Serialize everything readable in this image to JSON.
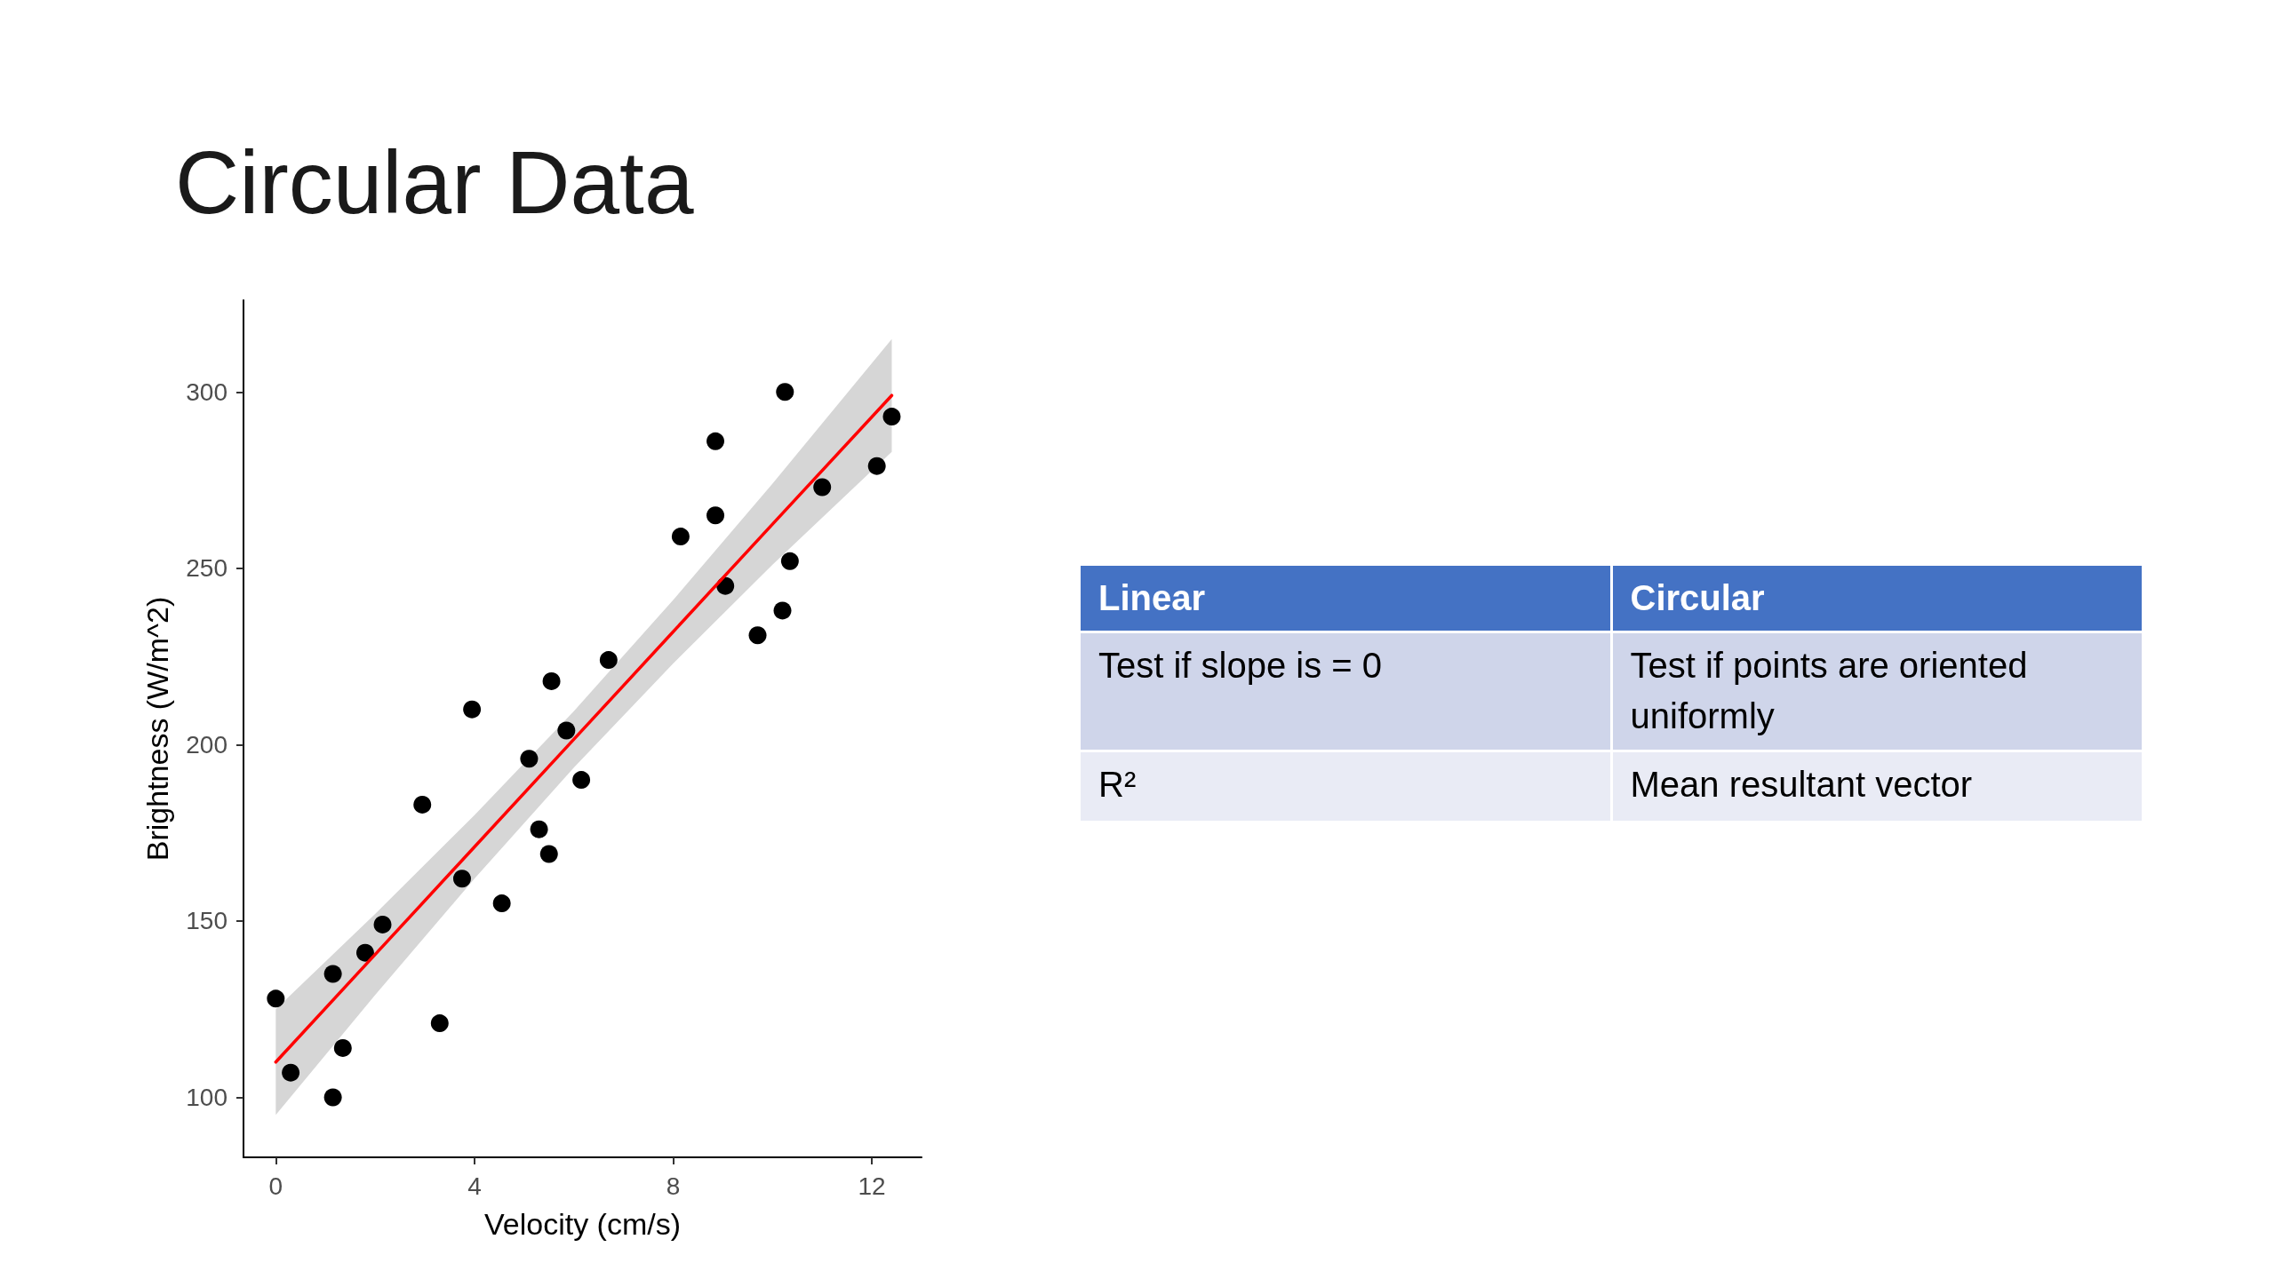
{
  "chart_data": [
    {
      "type": "scatter",
      "title": "Circular Data",
      "xlabel": "Velocity (cm/s)",
      "ylabel": "Brightness (W/m^2)",
      "xlim": [
        -0.65,
        13
      ],
      "ylim": [
        83,
        326
      ],
      "xticks": [
        0,
        4,
        8,
        12
      ],
      "yticks": [
        100,
        150,
        200,
        250,
        300
      ],
      "marker": "circle",
      "series": [
        {
          "type": "scatter",
          "color": "#000000",
          "x": [
            10.25,
            12.4,
            8.85,
            12.1,
            11,
            8.85,
            8.15,
            10.35,
            9.05,
            10.2,
            9.7,
            6.7,
            5.55,
            3.95,
            5.85,
            5.1,
            6.15,
            2.95,
            5.3,
            5.5,
            3.75,
            4.55,
            2.15,
            1.8,
            1.15,
            0,
            3.3,
            1.35,
            0.3,
            1.15
          ],
          "values": [
            300,
            293,
            286,
            279,
            273,
            265,
            259,
            252,
            245,
            238,
            231,
            224,
            218,
            210,
            204,
            196,
            190,
            183,
            176,
            169,
            162,
            155,
            149,
            141,
            135,
            128,
            121,
            114,
            107,
            100
          ]
        },
        {
          "type": "line",
          "color": "#ff0000",
          "marker": "none",
          "line_style": "solid",
          "x": [
            0,
            2,
            4,
            6,
            8,
            10,
            12.4
          ],
          "values": [
            110,
            140.5,
            171,
            201.5,
            232,
            262.5,
            299
          ],
          "lower": [
            95,
            129,
            162,
            193.5,
            223,
            251,
            283
          ],
          "upper": [
            125,
            152,
            180,
            209.5,
            241,
            274,
            315
          ]
        }
      ]
    },
    {
      "type": "other",
      "categories": [
        "Linear",
        "Circular"
      ],
      "annotations": [
        "Test if slope is = 0",
        "Test if points are oriented uniformly",
        "R²",
        "Mean resultant vector"
      ]
    }
  ]
}
